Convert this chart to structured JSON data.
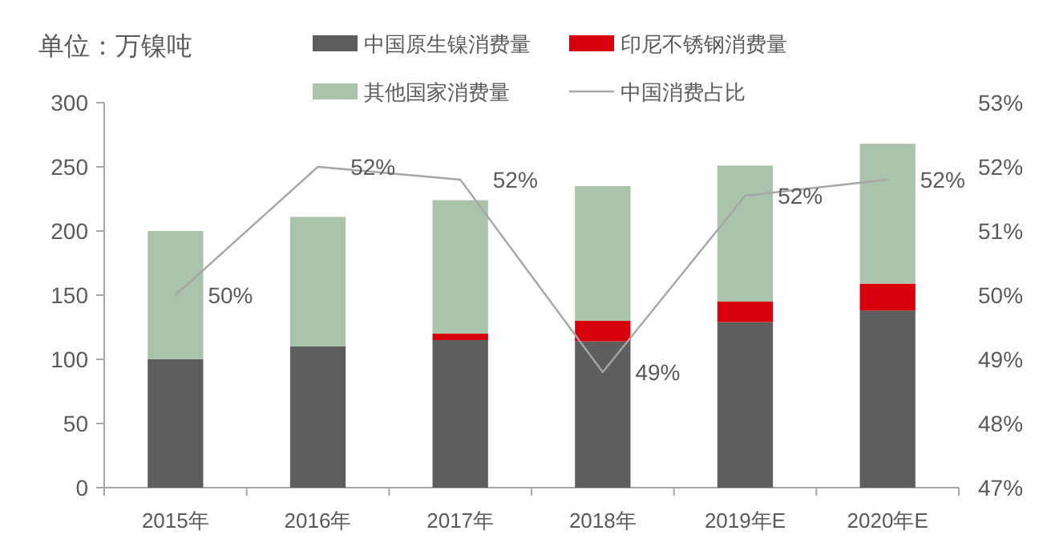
{
  "chart_data": {
    "type": "bar",
    "stacked": true,
    "ylabel": "单位：万镍吨",
    "categories": [
      "2015年",
      "2016年",
      "2017年",
      "2018年",
      "2019年E",
      "2020年E"
    ],
    "series": [
      {
        "name": "中国原生镍消费量",
        "color": "#5e5e5e",
        "values": [
          100,
          110,
          115,
          114,
          129,
          138
        ]
      },
      {
        "name": "印尼不锈钢消费量",
        "color": "#d9000d",
        "values": [
          0,
          0,
          5,
          16,
          16,
          21
        ]
      },
      {
        "name": "其他国家消费量",
        "color": "#aac3ab",
        "values": [
          100,
          101,
          104,
          105,
          106,
          109
        ]
      },
      {
        "name": "中国消费占比",
        "type": "line",
        "axis": "y2",
        "color": "#a6a6a6",
        "values": [
          50.0,
          52.0,
          51.8,
          48.8,
          51.55,
          51.8
        ],
        "value_labels": [
          "50%",
          "52%",
          "52%",
          "49%",
          "52%",
          "52%"
        ]
      }
    ],
    "ylim": [
      0,
      300
    ],
    "yticks": [
      0,
      50,
      100,
      150,
      200,
      250,
      300
    ],
    "y2lim": [
      47,
      53
    ],
    "y2ticks": [
      {
        "value": 47,
        "label": "47%"
      },
      {
        "value": 48,
        "label": "48%"
      },
      {
        "value": 49,
        "label": "49%"
      },
      {
        "value": 50,
        "label": "50%"
      },
      {
        "value": 51,
        "label": "51%"
      },
      {
        "value": 52,
        "label": "52%"
      },
      {
        "value": 53,
        "label": "53%"
      }
    ],
    "legend": "top",
    "grid": false
  }
}
